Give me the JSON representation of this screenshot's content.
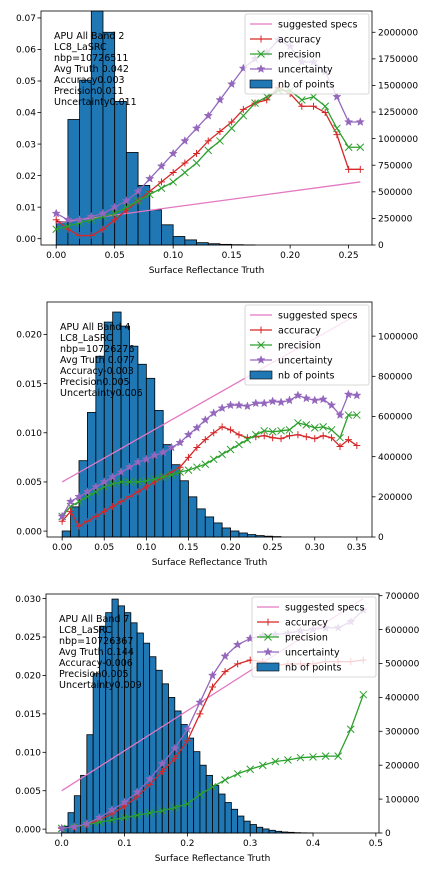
{
  "chart_data": [
    {
      "type": "bar+line",
      "annotation": [
        "APU All Band 2",
        "LC8_LaSRC",
        "nbp=10726511",
        "Avg Truth 0.042",
        "Accuracy0.003",
        "Precision0.011",
        "Uncertainty0.011"
      ],
      "xlabel": "Surface Reflectance Truth",
      "xlim": [
        -0.013,
        0.27
      ],
      "ylim": [
        -0.002,
        0.0722
      ],
      "y2lim": [
        0,
        2200000
      ],
      "xticks": [
        0.0,
        0.05,
        0.1,
        0.15,
        0.2,
        0.25
      ],
      "xtick_labels": [
        "0.00",
        "0.05",
        "0.10",
        "0.15",
        "0.20",
        "0.25"
      ],
      "yticks": [
        0.0,
        0.01,
        0.02,
        0.03,
        0.04,
        0.05,
        0.06,
        0.07
      ],
      "ytick_labels": [
        "0.00",
        "0.01",
        "0.02",
        "0.03",
        "0.04",
        "0.05",
        "0.06",
        "0.07"
      ],
      "y2ticks": [
        0,
        250000,
        500000,
        750000,
        1000000,
        1250000,
        1500000,
        1750000,
        2000000
      ],
      "y2tick_labels": [
        "0",
        "250000",
        "500000",
        "750000",
        "1000000",
        "1250000",
        "1500000",
        "1750000",
        "2000000"
      ],
      "hist_bin_width": 0.01,
      "hist_x": [
        0.0,
        0.01,
        0.02,
        0.03,
        0.04,
        0.05,
        0.06,
        0.07,
        0.08,
        0.09,
        0.1,
        0.11,
        0.12,
        0.13,
        0.14,
        0.15,
        0.16
      ],
      "hist_counts": [
        220000,
        1180000,
        1550000,
        2200000,
        2000000,
        1350000,
        870000,
        560000,
        330000,
        190000,
        80000,
        48000,
        22000,
        12000,
        6000,
        3000,
        1000
      ],
      "series": [
        {
          "name": "suggested specs",
          "color": "#e377c2",
          "marker": "none",
          "x": [
            0.0,
            0.26
          ],
          "y": [
            0.005,
            0.018
          ]
        },
        {
          "name": "accuracy",
          "color": "#d62728",
          "marker": "plus",
          "x": [
            0.0,
            0.01,
            0.02,
            0.03,
            0.04,
            0.05,
            0.06,
            0.07,
            0.08,
            0.09,
            0.1,
            0.11,
            0.12,
            0.13,
            0.14,
            0.15,
            0.16,
            0.17,
            0.18,
            0.19,
            0.2,
            0.21,
            0.22,
            0.23,
            0.24,
            0.25,
            0.26
          ],
          "y": [
            0.006,
            0.003,
            0.001,
            0.001,
            0.003,
            0.006,
            0.009,
            0.012,
            0.015,
            0.018,
            0.021,
            0.024,
            0.027,
            0.031,
            0.034,
            0.037,
            0.041,
            0.043,
            0.044,
            0.048,
            0.046,
            0.042,
            0.042,
            0.04,
            0.033,
            0.022,
            0.022
          ]
        },
        {
          "name": "precision",
          "color": "#2ca02c",
          "marker": "x",
          "x": [
            0.0,
            0.01,
            0.02,
            0.03,
            0.04,
            0.05,
            0.06,
            0.07,
            0.08,
            0.09,
            0.1,
            0.11,
            0.12,
            0.13,
            0.14,
            0.15,
            0.16,
            0.17,
            0.18,
            0.19,
            0.2,
            0.21,
            0.22,
            0.23,
            0.24,
            0.25,
            0.26
          ],
          "y": [
            0.003,
            0.004,
            0.005,
            0.006,
            0.007,
            0.008,
            0.01,
            0.012,
            0.014,
            0.016,
            0.018,
            0.021,
            0.024,
            0.028,
            0.031,
            0.035,
            0.039,
            0.043,
            0.045,
            0.047,
            0.047,
            0.044,
            0.045,
            0.042,
            0.035,
            0.029,
            0.029
          ]
        },
        {
          "name": "uncertainty",
          "color": "#9467bd",
          "marker": "star",
          "x": [
            0.0,
            0.01,
            0.02,
            0.03,
            0.04,
            0.05,
            0.06,
            0.07,
            0.08,
            0.09,
            0.1,
            0.11,
            0.12,
            0.13,
            0.14,
            0.15,
            0.16,
            0.17,
            0.18,
            0.19,
            0.2,
            0.21,
            0.22,
            0.23,
            0.24,
            0.25,
            0.26
          ],
          "y": [
            0.008,
            0.006,
            0.006,
            0.007,
            0.008,
            0.01,
            0.012,
            0.015,
            0.019,
            0.023,
            0.027,
            0.031,
            0.035,
            0.039,
            0.044,
            0.049,
            0.054,
            0.057,
            0.059,
            0.063,
            0.061,
            0.056,
            0.056,
            0.053,
            0.045,
            0.037,
            0.037
          ]
        }
      ]
    },
    {
      "type": "bar+line",
      "annotation": [
        "APU All Band 4",
        "LC8_LaSRC",
        "nbp=10726276",
        "Avg Truth 0.077",
        "Accuracy-0.003",
        "Precision0.005",
        "Uncertainty0.006"
      ],
      "xlabel": "Surface Reflectance Truth",
      "xlim": [
        -0.018,
        0.368
      ],
      "ylim": [
        -0.0006,
        0.0233
      ],
      "y2lim": [
        0,
        1170000
      ],
      "xticks": [
        0.0,
        0.05,
        0.1,
        0.15,
        0.2,
        0.25,
        0.3,
        0.35
      ],
      "xtick_labels": [
        "0.00",
        "0.05",
        "0.10",
        "0.15",
        "0.20",
        "0.25",
        "0.30",
        "0.35"
      ],
      "yticks": [
        0.0,
        0.005,
        0.01,
        0.015,
        0.02
      ],
      "ytick_labels": [
        "0.000",
        "0.005",
        "0.010",
        "0.015",
        "0.020"
      ],
      "y2ticks": [
        0,
        200000,
        400000,
        600000,
        800000,
        1000000
      ],
      "y2tick_labels": [
        "0",
        "200000",
        "400000",
        "600000",
        "800000",
        "1000000"
      ],
      "hist_bin_width": 0.01,
      "hist_x": [
        0.0,
        0.01,
        0.02,
        0.03,
        0.04,
        0.05,
        0.06,
        0.07,
        0.08,
        0.09,
        0.1,
        0.11,
        0.12,
        0.13,
        0.14,
        0.15,
        0.16,
        0.17,
        0.18,
        0.19,
        0.2,
        0.21,
        0.22,
        0.23,
        0.24,
        0.25
      ],
      "hist_counts": [
        30000,
        150000,
        380000,
        620000,
        900000,
        1070000,
        1120000,
        1050000,
        950000,
        860000,
        790000,
        630000,
        460000,
        360000,
        280000,
        200000,
        140000,
        100000,
        70000,
        45000,
        30000,
        20000,
        12000,
        7000,
        4000,
        2000
      ],
      "series": [
        {
          "name": "suggested specs",
          "color": "#e377c2",
          "marker": "none",
          "x": [
            0.0,
            0.35
          ],
          "y": [
            0.005,
            0.022
          ]
        },
        {
          "name": "accuracy",
          "color": "#d62728",
          "marker": "plus",
          "x": [
            0.0,
            0.01,
            0.02,
            0.03,
            0.04,
            0.05,
            0.06,
            0.07,
            0.08,
            0.09,
            0.1,
            0.11,
            0.12,
            0.13,
            0.14,
            0.15,
            0.16,
            0.17,
            0.18,
            0.19,
            0.2,
            0.21,
            0.22,
            0.23,
            0.24,
            0.25,
            0.26,
            0.27,
            0.28,
            0.29,
            0.3,
            0.31,
            0.32,
            0.33,
            0.34,
            0.35
          ],
          "y": [
            0.001,
            0.002,
            0.0005,
            0.001,
            0.0015,
            0.002,
            0.0025,
            0.003,
            0.0035,
            0.004,
            0.0045,
            0.005,
            0.0055,
            0.006,
            0.0065,
            0.0075,
            0.0085,
            0.0093,
            0.01,
            0.0106,
            0.0103,
            0.0098,
            0.0095,
            0.0096,
            0.0097,
            0.0095,
            0.0094,
            0.0097,
            0.0098,
            0.0096,
            0.0094,
            0.0097,
            0.0095,
            0.0086,
            0.0093,
            0.0087
          ]
        },
        {
          "name": "precision",
          "color": "#2ca02c",
          "marker": "x",
          "x": [
            0.0,
            0.01,
            0.02,
            0.03,
            0.04,
            0.05,
            0.06,
            0.07,
            0.08,
            0.09,
            0.1,
            0.11,
            0.12,
            0.13,
            0.14,
            0.15,
            0.16,
            0.17,
            0.18,
            0.19,
            0.2,
            0.21,
            0.22,
            0.23,
            0.24,
            0.25,
            0.26,
            0.27,
            0.28,
            0.29,
            0.3,
            0.31,
            0.32,
            0.33,
            0.34,
            0.35
          ],
          "y": [
            0.0015,
            0.0025,
            0.003,
            0.0035,
            0.004,
            0.0045,
            0.0048,
            0.005,
            0.005,
            0.005,
            0.0051,
            0.0053,
            0.0055,
            0.0057,
            0.006,
            0.0062,
            0.0065,
            0.0068,
            0.0073,
            0.0078,
            0.0083,
            0.0088,
            0.0093,
            0.0098,
            0.0102,
            0.0101,
            0.0102,
            0.0103,
            0.011,
            0.0108,
            0.0105,
            0.0106,
            0.0103,
            0.0095,
            0.0118,
            0.0118
          ]
        },
        {
          "name": "uncertainty",
          "color": "#9467bd",
          "marker": "star",
          "x": [
            0.0,
            0.01,
            0.02,
            0.03,
            0.04,
            0.05,
            0.06,
            0.07,
            0.08,
            0.09,
            0.1,
            0.11,
            0.12,
            0.13,
            0.14,
            0.15,
            0.16,
            0.17,
            0.18,
            0.19,
            0.2,
            0.21,
            0.22,
            0.23,
            0.24,
            0.25,
            0.26,
            0.27,
            0.28,
            0.29,
            0.3,
            0.31,
            0.32,
            0.33,
            0.34,
            0.35
          ],
          "y": [
            0.0015,
            0.003,
            0.0035,
            0.004,
            0.0045,
            0.005,
            0.0055,
            0.006,
            0.0065,
            0.007,
            0.0073,
            0.0077,
            0.008,
            0.0085,
            0.009,
            0.0098,
            0.0105,
            0.0113,
            0.012,
            0.0125,
            0.0128,
            0.0128,
            0.0127,
            0.013,
            0.013,
            0.0132,
            0.0131,
            0.0133,
            0.0138,
            0.0135,
            0.0133,
            0.0134,
            0.0128,
            0.0118,
            0.0139,
            0.0138
          ]
        }
      ]
    },
    {
      "type": "bar+line",
      "annotation": [
        "APU All Band 7",
        "LC8_LaSRC",
        "nbp=10726367",
        "Avg Truth 0.144",
        "Accuracy-0.006",
        "Precision0.005",
        "Uncertainty0.009"
      ],
      "xlabel": "Surface Reflectance Truth",
      "xlim": [
        -0.025,
        0.505
      ],
      "ylim": [
        -0.0005,
        0.0306
      ],
      "y2lim": [
        0,
        705000
      ],
      "xticks": [
        0.0,
        0.1,
        0.2,
        0.3,
        0.4,
        0.5
      ],
      "xtick_labels": [
        "0.0",
        "0.1",
        "0.2",
        "0.3",
        "0.4",
        "0.5"
      ],
      "yticks": [
        0.0,
        0.005,
        0.01,
        0.015,
        0.02,
        0.025,
        0.03
      ],
      "ytick_labels": [
        "0.000",
        "0.005",
        "0.010",
        "0.015",
        "0.020",
        "0.025",
        "0.030"
      ],
      "y2ticks": [
        0,
        100000,
        200000,
        300000,
        400000,
        500000,
        600000,
        700000
      ],
      "y2tick_labels": [
        "0",
        "100000",
        "200000",
        "300000",
        "400000",
        "500000",
        "600000",
        "700000"
      ],
      "hist_bin_width": 0.01,
      "hist_x": [
        0.0,
        0.01,
        0.02,
        0.03,
        0.04,
        0.05,
        0.06,
        0.07,
        0.08,
        0.09,
        0.1,
        0.11,
        0.12,
        0.13,
        0.14,
        0.15,
        0.16,
        0.17,
        0.18,
        0.19,
        0.2,
        0.21,
        0.22,
        0.23,
        0.24,
        0.25,
        0.26,
        0.27,
        0.28,
        0.29,
        0.3,
        0.31,
        0.32,
        0.33,
        0.34,
        0.35,
        0.36,
        0.37,
        0.38,
        0.39
      ],
      "hist_counts": [
        20000,
        60000,
        110000,
        170000,
        290000,
        470000,
        610000,
        650000,
        690000,
        670000,
        650000,
        620000,
        590000,
        560000,
        520000,
        480000,
        440000,
        400000,
        360000,
        320000,
        280000,
        240000,
        200000,
        170000,
        140000,
        115000,
        90000,
        70000,
        50000,
        35000,
        25000,
        17000,
        12000,
        8000,
        5000,
        3000,
        2000,
        1000,
        500,
        200
      ],
      "series": [
        {
          "name": "suggested specs",
          "color": "#e377c2",
          "marker": "none",
          "x": [
            0.0,
            0.48
          ],
          "y": [
            0.005,
            0.03
          ]
        },
        {
          "name": "accuracy",
          "color": "#d62728",
          "marker": "plus",
          "x": [
            0.0,
            0.02,
            0.04,
            0.06,
            0.08,
            0.1,
            0.12,
            0.14,
            0.16,
            0.18,
            0.2,
            0.22,
            0.24,
            0.26,
            0.28,
            0.3,
            0.32,
            0.34,
            0.36,
            0.38,
            0.4,
            0.42,
            0.44,
            0.46,
            0.48
          ],
          "y": [
            0.0001,
            0.0003,
            0.0006,
            0.0012,
            0.002,
            0.003,
            0.0042,
            0.0058,
            0.0075,
            0.0092,
            0.0115,
            0.015,
            0.0185,
            0.0205,
            0.0215,
            0.022,
            0.0218,
            0.0213,
            0.0215,
            0.0215,
            0.0215,
            0.0218,
            0.0218,
            0.0218,
            0.022
          ]
        },
        {
          "name": "precision",
          "color": "#2ca02c",
          "marker": "x",
          "x": [
            0.0,
            0.02,
            0.04,
            0.06,
            0.08,
            0.1,
            0.12,
            0.14,
            0.16,
            0.18,
            0.2,
            0.22,
            0.24,
            0.26,
            0.28,
            0.3,
            0.32,
            0.34,
            0.36,
            0.38,
            0.4,
            0.42,
            0.44,
            0.46,
            0.48
          ],
          "y": [
            0.0001,
            0.0003,
            0.0006,
            0.0009,
            0.0012,
            0.0015,
            0.0018,
            0.0021,
            0.0024,
            0.0028,
            0.0033,
            0.0045,
            0.0055,
            0.0064,
            0.0072,
            0.0078,
            0.0083,
            0.0088,
            0.009,
            0.0093,
            0.0094,
            0.0095,
            0.0095,
            0.013,
            0.0175
          ]
        },
        {
          "name": "uncertainty",
          "color": "#9467bd",
          "marker": "star",
          "x": [
            0.0,
            0.02,
            0.04,
            0.06,
            0.08,
            0.1,
            0.12,
            0.14,
            0.16,
            0.18,
            0.2,
            0.22,
            0.24,
            0.26,
            0.28,
            0.3,
            0.32,
            0.34,
            0.36,
            0.38,
            0.4,
            0.42,
            0.44,
            0.46,
            0.48
          ],
          "y": [
            0.0001,
            0.0003,
            0.0007,
            0.0015,
            0.0025,
            0.0035,
            0.0048,
            0.0065,
            0.0085,
            0.0105,
            0.013,
            0.0165,
            0.02,
            0.0225,
            0.024,
            0.0248,
            0.0252,
            0.0253,
            0.0255,
            0.0258,
            0.026,
            0.0262,
            0.0262,
            0.027,
            0.0285
          ]
        }
      ]
    }
  ]
}
